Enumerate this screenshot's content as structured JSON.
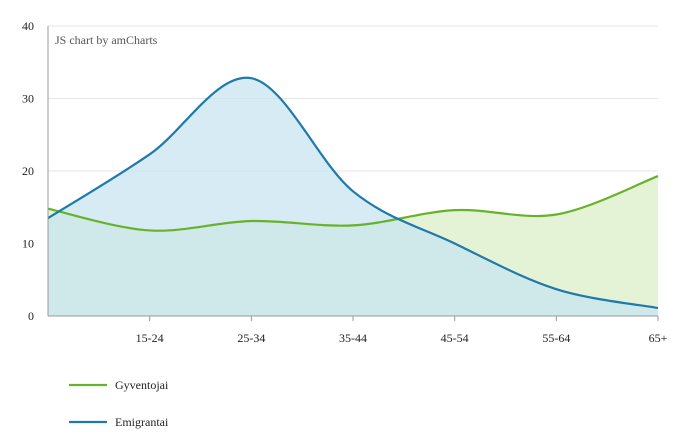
{
  "credit": "JS chart by amCharts",
  "chart_data": {
    "type": "area",
    "categories": [
      "",
      "15-24",
      "25-34",
      "35-44",
      "45-54",
      "55-64",
      "65+"
    ],
    "series": [
      {
        "name": "Gyventojai",
        "values": [
          14.8,
          11.8,
          13.1,
          12.5,
          14.6,
          14.0,
          19.3
        ],
        "color": "#67b22a",
        "fill": "#e4f3d5"
      },
      {
        "name": "Emigrantai",
        "values": [
          13.5,
          22.3,
          32.8,
          17.2,
          10.0,
          3.7,
          1.1
        ],
        "color": "#1d7aab",
        "fill": "#c6e2f1"
      }
    ],
    "title": "",
    "xlabel": "",
    "ylabel": "",
    "ylim": [
      0,
      40
    ],
    "yticks": [
      "0",
      "10",
      "20",
      "30",
      "40"
    ],
    "grid": true,
    "legend_position": "bottom-left"
  }
}
